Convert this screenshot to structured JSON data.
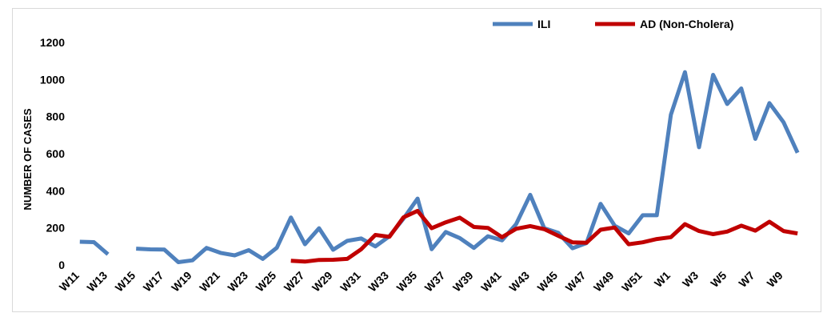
{
  "chart_data": {
    "type": "line",
    "title": "",
    "xlabel": "",
    "ylabel": "NUMBER OF CASES",
    "ylim": [
      0,
      1200
    ],
    "yticks": [
      0,
      200,
      400,
      600,
      800,
      1000,
      1200
    ],
    "grid": false,
    "legend_position": "top-right",
    "categories": [
      "W11",
      "W12",
      "W13",
      "W14",
      "W15",
      "W16",
      "W17",
      "W18",
      "W19",
      "W20",
      "W21",
      "W22",
      "W23",
      "W24",
      "W25",
      "W26",
      "W27",
      "W28",
      "W29",
      "W30",
      "W31",
      "W32",
      "W33",
      "W34",
      "W35",
      "W36",
      "W37",
      "W38",
      "W39",
      "W40",
      "W41",
      "W42",
      "W43",
      "W44",
      "W45",
      "W46",
      "W47",
      "W48",
      "W49",
      "W50",
      "W51",
      "W52",
      "W1",
      "W2",
      "W3",
      "W4",
      "W5",
      "W6",
      "W7",
      "W8",
      "W9",
      "W10"
    ],
    "tick_labels": [
      "W11",
      "W13",
      "W15",
      "W17",
      "W19",
      "W21",
      "W23",
      "W25",
      "W27",
      "W29",
      "W31",
      "W33",
      "W35",
      "W37",
      "W39",
      "W41",
      "W43",
      "W45",
      "W47",
      "W49",
      "W51",
      "W1",
      "W3",
      "W5",
      "W7",
      "W9"
    ],
    "series": [
      {
        "name": "ILI",
        "color": "#4F81BD",
        "values": [
          125,
          123,
          58,
          null,
          88,
          84,
          83,
          15,
          25,
          92,
          65,
          52,
          80,
          33,
          93,
          256,
          112,
          198,
          82,
          130,
          143,
          100,
          155,
          250,
          358,
          85,
          178,
          145,
          92,
          155,
          133,
          220,
          378,
          198,
          173,
          90,
          118,
          330,
          212,
          170,
          268,
          268,
          810,
          1040,
          635,
          1025,
          868,
          952,
          680,
          873,
          770,
          605
        ]
      },
      {
        "name": "AD (Non-Cholera)",
        "color": "#C00000",
        "values": [
          null,
          null,
          null,
          null,
          null,
          null,
          null,
          null,
          null,
          null,
          null,
          null,
          null,
          null,
          null,
          23,
          18,
          27,
          28,
          33,
          85,
          162,
          152,
          257,
          292,
          198,
          230,
          255,
          205,
          200,
          150,
          195,
          210,
          193,
          157,
          122,
          120,
          190,
          202,
          112,
          122,
          140,
          150,
          220,
          183,
          166,
          180,
          212,
          185,
          233,
          183,
          170
        ]
      }
    ]
  }
}
